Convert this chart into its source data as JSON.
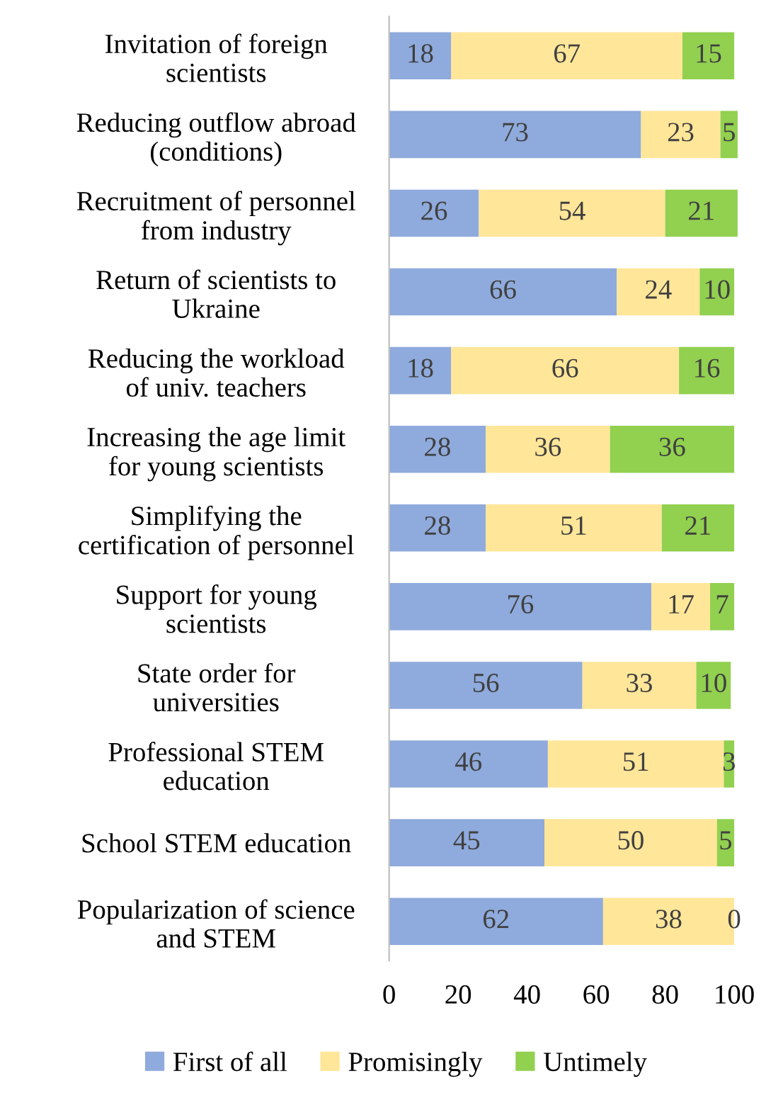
{
  "chart_data": {
    "type": "bar",
    "orientation": "horizontal",
    "stacked": true,
    "categories": [
      "Invitation of foreign\nscientists",
      "Reducing outflow abroad\n(conditions)",
      "Recruitment of personnel\nfrom industry",
      "Return of scientists to\nUkraine",
      "Reducing the workload\nof univ. teachers",
      "Increasing the age limit\nfor young scientists",
      "Simplifying the\ncertification of personnel",
      "Support for young\nscientists",
      "State order for\nuniversities",
      "Professional STEM\neducation",
      "School STEM education",
      "Popularization of science\nand STEM"
    ],
    "series": [
      {
        "name": "First of all",
        "color": "#8faadc",
        "values": [
          18,
          73,
          26,
          66,
          18,
          28,
          28,
          76,
          56,
          46,
          45,
          62
        ]
      },
      {
        "name": "Promisingly",
        "color": "#ffe699",
        "values": [
          67,
          23,
          54,
          24,
          66,
          36,
          51,
          17,
          33,
          51,
          50,
          38
        ]
      },
      {
        "name": "Untimely",
        "color": "#92d050",
        "values": [
          15,
          5,
          21,
          10,
          16,
          36,
          21,
          7,
          10,
          3,
          5,
          0
        ]
      }
    ],
    "xlim": [
      0,
      101
    ],
    "xticks": [
      0,
      20,
      40,
      60,
      80,
      100
    ],
    "data_labels": true,
    "legend": "bottom",
    "grid": false
  }
}
